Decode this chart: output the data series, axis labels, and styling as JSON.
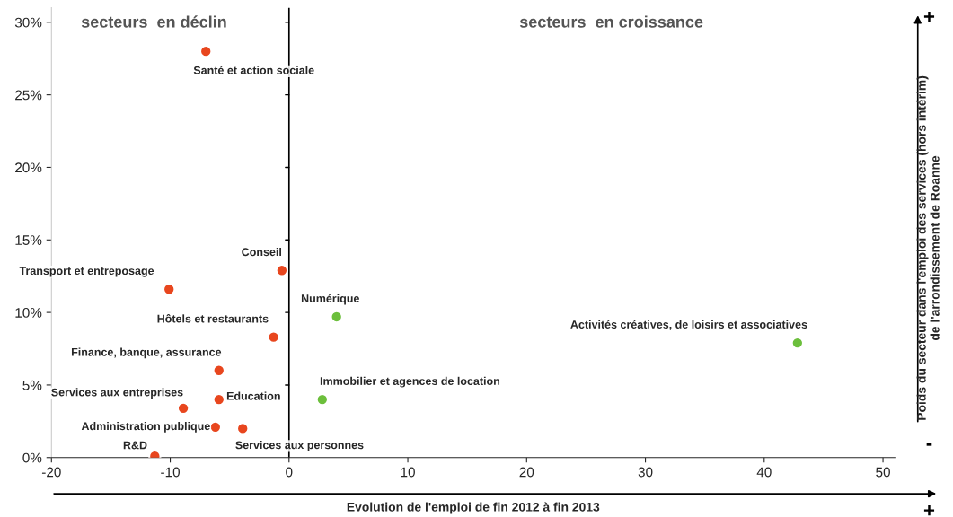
{
  "chart_data": {
    "type": "scatter",
    "xlabel": "Evolution de l'emploi de fin 2012 à fin 2013",
    "ylabel": "Poids du secteur dans l'emploi des services (hors intérim)\nde l'arrondissement de Roanne",
    "series": [
      {
        "color": "#e8461e",
        "x": [
          -7.0,
          -10.1,
          -0.6,
          -1.3,
          -5.9,
          -5.9,
          -8.9,
          -6.2,
          -3.9,
          -11.3
        ],
        "values": [
          28.0,
          11.6,
          12.9,
          8.3,
          6.0,
          4.0,
          3.4,
          2.1,
          2.0,
          0.1
        ]
      },
      {
        "color": "#6cbf3c",
        "x": [
          4.0,
          2.8,
          42.8
        ],
        "values": [
          9.7,
          4.0,
          7.9
        ]
      }
    ],
    "xlim": [
      -20,
      51
    ],
    "ylim": [
      0,
      31
    ],
    "xticks": [
      -20,
      -10,
      0,
      10,
      20,
      30,
      40,
      50
    ],
    "yticks": [
      {
        "value": 0,
        "label": "0%"
      },
      {
        "value": 5,
        "label": "5%"
      },
      {
        "value": 10,
        "label": "10%"
      },
      {
        "value": 15,
        "label": "15%"
      },
      {
        "value": 20,
        "label": "20%"
      },
      {
        "value": 25,
        "label": "25%"
      },
      {
        "value": 30,
        "label": "30%"
      }
    ],
    "ref_lines": [
      {
        "axis": "x",
        "value": 0,
        "color": "#000000"
      }
    ],
    "grid": false,
    "marker": "circle",
    "annotations": [
      {
        "text": "Santé et action sociale",
        "x": -7.0,
        "y": 28.0
      },
      {
        "text": "Transport et entreposage",
        "x": -10.1,
        "y": 11.6
      },
      {
        "text": "Conseil",
        "x": -0.6,
        "y": 12.9
      },
      {
        "text": "Hôtels et restaurants",
        "x": -1.3,
        "y": 8.3
      },
      {
        "text": "Finance, banque, assurance",
        "x": -5.9,
        "y": 6.0
      },
      {
        "text": "Education",
        "x": -5.9,
        "y": 4.0
      },
      {
        "text": "Services aux entreprises",
        "x": -8.9,
        "y": 3.4
      },
      {
        "text": "Administration publique",
        "x": -6.2,
        "y": 2.1
      },
      {
        "text": "Services aux personnes",
        "x": -3.9,
        "y": 2.0
      },
      {
        "text": "R&D",
        "x": -11.3,
        "y": 0.1
      },
      {
        "text": "Numérique",
        "x": 4.0,
        "y": 9.7
      },
      {
        "text": "Immobilier et agences de location",
        "x": 2.8,
        "y": 4.0
      },
      {
        "text": "Activités créatives, de loisirs et associatives",
        "x": 42.8,
        "y": 7.9
      },
      "secteurs  en déclin",
      "secteurs  en croissance",
      "+",
      "-",
      "+"
    ]
  }
}
